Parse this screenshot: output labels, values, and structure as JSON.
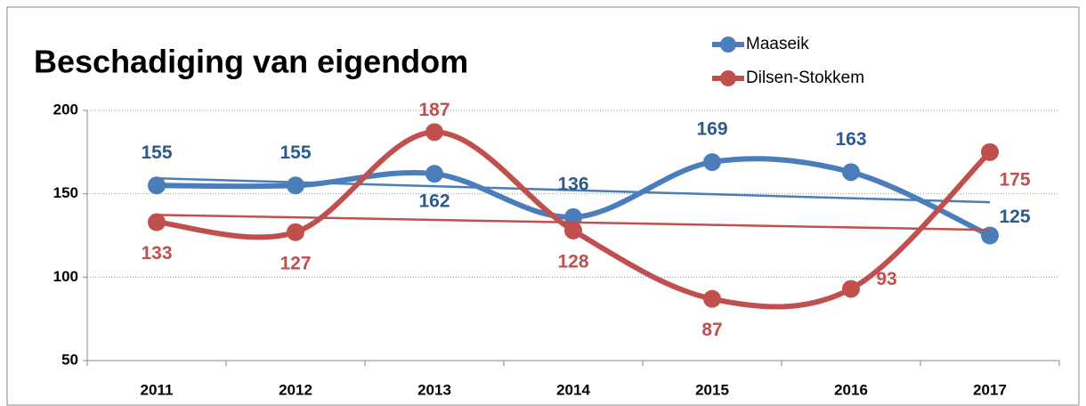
{
  "chart_data": {
    "type": "line",
    "title": "Beschadiging van eigendom",
    "categories": [
      "2011",
      "2012",
      "2013",
      "2014",
      "2015",
      "2016",
      "2017"
    ],
    "series": [
      {
        "name": "Maaseik",
        "color": "#4a7ebb",
        "label_color": "#2c5a8f",
        "values": [
          155,
          155,
          162,
          136,
          169,
          163,
          125
        ]
      },
      {
        "name": "Dilsen-Stokkem",
        "color": "#c0504d",
        "label_color": "#c0504d",
        "values": [
          133,
          127,
          187,
          128,
          87,
          93,
          175
        ]
      }
    ],
    "ylim": [
      50,
      200
    ],
    "yticks": [
      50,
      100,
      150,
      200
    ],
    "grid": true,
    "smooth": true,
    "trendline": true,
    "legend": "top-right"
  }
}
